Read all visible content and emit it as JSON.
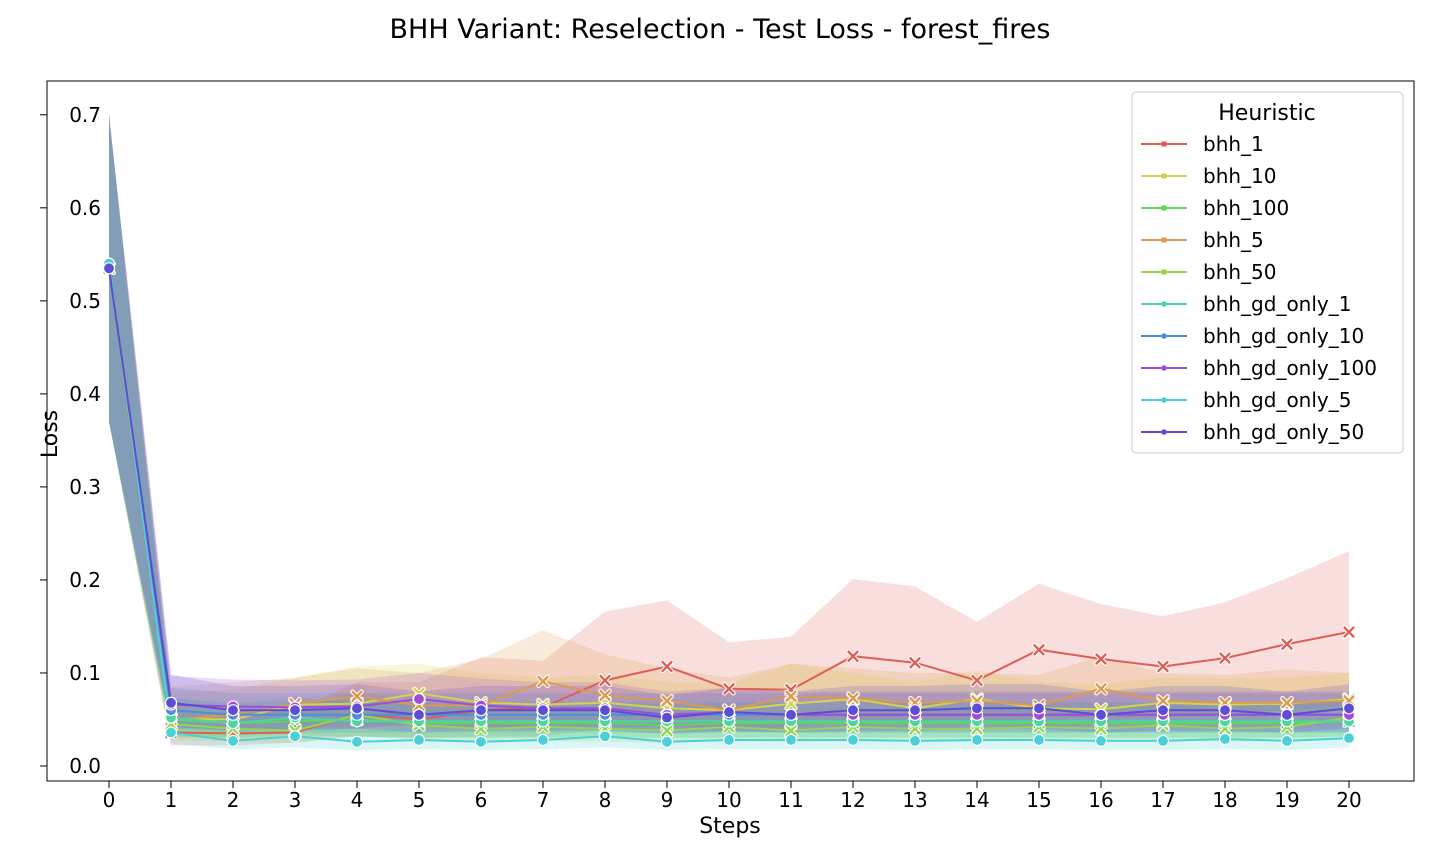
{
  "chart_data": {
    "type": "line",
    "title": "BHH Variant: Reselection - Test Loss - forest_fires",
    "xlabel": "Steps",
    "ylabel": "Loss",
    "xlim": [
      0,
      20
    ],
    "ylim": [
      -0.015,
      0.735
    ],
    "x": [
      0,
      1,
      2,
      3,
      4,
      5,
      6,
      7,
      8,
      9,
      10,
      11,
      12,
      13,
      14,
      15,
      16,
      17,
      18,
      19,
      20
    ],
    "x_ticks": [
      "0",
      "1",
      "2",
      "3",
      "4",
      "5",
      "6",
      "7",
      "8",
      "9",
      "10",
      "11",
      "12",
      "13",
      "14",
      "15",
      "16",
      "17",
      "18",
      "19",
      "20"
    ],
    "y_ticks": [
      {
        "v": 0.0,
        "label": "0.0"
      },
      {
        "v": 0.1,
        "label": "0.1"
      },
      {
        "v": 0.2,
        "label": "0.2"
      },
      {
        "v": 0.3,
        "label": "0.3"
      },
      {
        "v": 0.4,
        "label": "0.4"
      },
      {
        "v": 0.5,
        "label": "0.5"
      },
      {
        "v": 0.6,
        "label": "0.6"
      },
      {
        "v": 0.7,
        "label": "0.7"
      }
    ],
    "grid": false,
    "legend": {
      "title": "Heuristic",
      "placement": "top-right"
    },
    "series": [
      {
        "name": "bhh_1",
        "color": "#db5f57",
        "marker": "x",
        "values": [
          0.535,
          0.036,
          0.035,
          0.036,
          0.056,
          0.05,
          0.06,
          0.063,
          0.092,
          0.107,
          0.083,
          0.082,
          0.118,
          0.111,
          0.092,
          0.125,
          0.115,
          0.107,
          0.116,
          0.131,
          0.144
        ],
        "lower": [
          0.37,
          0.022,
          0.022,
          0.025,
          0.032,
          0.03,
          0.032,
          0.032,
          0.04,
          0.044,
          0.04,
          0.042,
          0.05,
          0.048,
          0.044,
          0.052,
          0.052,
          0.052,
          0.055,
          0.06,
          0.065
        ],
        "upper": [
          0.7,
          0.058,
          0.058,
          0.06,
          0.09,
          0.09,
          0.117,
          0.113,
          0.166,
          0.178,
          0.133,
          0.139,
          0.201,
          0.193,
          0.155,
          0.196,
          0.174,
          0.161,
          0.176,
          0.202,
          0.231
        ]
      },
      {
        "name": "bhh_10",
        "color": "#d3d34c",
        "marker": "x",
        "values": [
          0.535,
          0.051,
          0.05,
          0.066,
          0.067,
          0.078,
          0.068,
          0.066,
          0.068,
          0.062,
          0.06,
          0.067,
          0.072,
          0.062,
          0.072,
          0.062,
          0.061,
          0.068,
          0.066,
          0.067,
          0.072
        ],
        "lower": [
          0.37,
          0.03,
          0.03,
          0.04,
          0.04,
          0.048,
          0.042,
          0.04,
          0.042,
          0.04,
          0.038,
          0.04,
          0.044,
          0.04,
          0.044,
          0.04,
          0.04,
          0.042,
          0.042,
          0.042,
          0.045
        ],
        "upper": [
          0.7,
          0.08,
          0.082,
          0.095,
          0.107,
          0.11,
          0.1,
          0.095,
          0.098,
          0.09,
          0.088,
          0.11,
          0.1,
          0.09,
          0.103,
          0.09,
          0.088,
          0.095,
          0.094,
          0.095,
          0.1
        ]
      },
      {
        "name": "bhh_100",
        "color": "#5cd65c",
        "marker": "x",
        "values": [
          0.535,
          0.05,
          0.046,
          0.048,
          0.05,
          0.046,
          0.046,
          0.046,
          0.046,
          0.044,
          0.046,
          0.046,
          0.046,
          0.046,
          0.046,
          0.046,
          0.046,
          0.046,
          0.046,
          0.046,
          0.048
        ],
        "lower": [
          0.37,
          0.032,
          0.03,
          0.032,
          0.032,
          0.03,
          0.03,
          0.03,
          0.03,
          0.03,
          0.03,
          0.03,
          0.03,
          0.03,
          0.03,
          0.03,
          0.03,
          0.03,
          0.03,
          0.03,
          0.032
        ],
        "upper": [
          0.7,
          0.072,
          0.068,
          0.07,
          0.072,
          0.068,
          0.068,
          0.068,
          0.068,
          0.066,
          0.068,
          0.068,
          0.068,
          0.068,
          0.068,
          0.068,
          0.068,
          0.068,
          0.068,
          0.068,
          0.07
        ]
      },
      {
        "name": "bhh_5",
        "color": "#db9a4c",
        "marker": "x",
        "values": [
          0.535,
          0.05,
          0.055,
          0.067,
          0.075,
          0.065,
          0.065,
          0.091,
          0.076,
          0.07,
          0.06,
          0.075,
          0.073,
          0.068,
          0.07,
          0.065,
          0.083,
          0.07,
          0.068,
          0.068,
          0.07
        ],
        "lower": [
          0.37,
          0.03,
          0.032,
          0.04,
          0.045,
          0.04,
          0.04,
          0.045,
          0.042,
          0.042,
          0.038,
          0.042,
          0.042,
          0.04,
          0.042,
          0.04,
          0.045,
          0.042,
          0.04,
          0.04,
          0.042
        ],
        "upper": [
          0.7,
          0.085,
          0.09,
          0.095,
          0.105,
          0.1,
          0.115,
          0.146,
          0.12,
          0.105,
          0.095,
          0.11,
          0.105,
          0.1,
          0.1,
          0.098,
          0.118,
          0.1,
          0.098,
          0.104,
          0.1
        ]
      },
      {
        "name": "bhh_50",
        "color": "#96d64c",
        "marker": "x",
        "values": [
          0.535,
          0.045,
          0.04,
          0.038,
          0.055,
          0.044,
          0.04,
          0.042,
          0.04,
          0.038,
          0.042,
          0.038,
          0.042,
          0.04,
          0.04,
          0.042,
          0.04,
          0.044,
          0.04,
          0.042,
          0.052
        ],
        "lower": [
          0.37,
          0.028,
          0.026,
          0.025,
          0.032,
          0.028,
          0.026,
          0.027,
          0.026,
          0.025,
          0.027,
          0.025,
          0.027,
          0.026,
          0.026,
          0.027,
          0.026,
          0.028,
          0.026,
          0.027,
          0.032
        ],
        "upper": [
          0.7,
          0.068,
          0.062,
          0.06,
          0.082,
          0.066,
          0.062,
          0.064,
          0.062,
          0.06,
          0.064,
          0.06,
          0.064,
          0.062,
          0.062,
          0.064,
          0.062,
          0.066,
          0.062,
          0.064,
          0.076
        ]
      },
      {
        "name": "bhh_gd_only_1",
        "color": "#4cd6a0",
        "marker": "o",
        "values": [
          0.54,
          0.052,
          0.046,
          0.052,
          0.048,
          0.048,
          0.048,
          0.048,
          0.048,
          0.048,
          0.048,
          0.048,
          0.048,
          0.048,
          0.048,
          0.048,
          0.048,
          0.048,
          0.048,
          0.048,
          0.048
        ],
        "lower": [
          0.37,
          0.034,
          0.03,
          0.034,
          0.031,
          0.031,
          0.031,
          0.031,
          0.031,
          0.031,
          0.031,
          0.031,
          0.031,
          0.031,
          0.031,
          0.031,
          0.031,
          0.031,
          0.031,
          0.031,
          0.031
        ],
        "upper": [
          0.7,
          0.074,
          0.066,
          0.074,
          0.069,
          0.069,
          0.069,
          0.069,
          0.069,
          0.069,
          0.069,
          0.069,
          0.069,
          0.069,
          0.069,
          0.069,
          0.069,
          0.069,
          0.069,
          0.069,
          0.069
        ]
      },
      {
        "name": "bhh_gd_only_10",
        "color": "#4c8fd6",
        "marker": "o",
        "values": [
          0.535,
          0.06,
          0.055,
          0.055,
          0.055,
          0.055,
          0.055,
          0.055,
          0.055,
          0.055,
          0.055,
          0.055,
          0.055,
          0.055,
          0.055,
          0.055,
          0.055,
          0.055,
          0.055,
          0.055,
          0.055
        ],
        "lower": [
          0.37,
          0.04,
          0.036,
          0.036,
          0.036,
          0.036,
          0.036,
          0.036,
          0.036,
          0.036,
          0.036,
          0.036,
          0.036,
          0.036,
          0.036,
          0.036,
          0.036,
          0.036,
          0.036,
          0.036,
          0.036
        ],
        "upper": [
          0.7,
          0.084,
          0.078,
          0.078,
          0.078,
          0.078,
          0.078,
          0.078,
          0.078,
          0.078,
          0.078,
          0.078,
          0.078,
          0.078,
          0.078,
          0.078,
          0.078,
          0.078,
          0.078,
          0.078,
          0.078
        ]
      },
      {
        "name": "bhh_gd_only_100",
        "color": "#a04cd6",
        "marker": "o",
        "values": [
          0.535,
          0.066,
          0.064,
          0.063,
          0.064,
          0.072,
          0.065,
          0.062,
          0.062,
          0.055,
          0.058,
          0.055,
          0.055,
          0.055,
          0.055,
          0.055,
          0.055,
          0.055,
          0.055,
          0.055,
          0.055
        ],
        "lower": [
          0.37,
          0.04,
          0.04,
          0.04,
          0.04,
          0.045,
          0.04,
          0.04,
          0.04,
          0.036,
          0.038,
          0.036,
          0.036,
          0.036,
          0.036,
          0.036,
          0.036,
          0.036,
          0.036,
          0.036,
          0.036
        ],
        "upper": [
          0.7,
          0.097,
          0.093,
          0.092,
          0.093,
          0.1,
          0.094,
          0.09,
          0.09,
          0.08,
          0.084,
          0.08,
          0.08,
          0.08,
          0.08,
          0.08,
          0.08,
          0.08,
          0.08,
          0.08,
          0.08
        ]
      },
      {
        "name": "bhh_gd_only_5",
        "color": "#4cd0d6",
        "marker": "o",
        "values": [
          0.54,
          0.036,
          0.027,
          0.032,
          0.026,
          0.028,
          0.026,
          0.028,
          0.032,
          0.026,
          0.028,
          0.028,
          0.028,
          0.027,
          0.028,
          0.028,
          0.027,
          0.027,
          0.029,
          0.027,
          0.03
        ],
        "lower": [
          0.37,
          0.024,
          0.018,
          0.02,
          0.017,
          0.018,
          0.017,
          0.018,
          0.02,
          0.017,
          0.018,
          0.018,
          0.018,
          0.017,
          0.018,
          0.018,
          0.017,
          0.017,
          0.018,
          0.017,
          0.02
        ],
        "upper": [
          0.7,
          0.052,
          0.04,
          0.046,
          0.038,
          0.04,
          0.038,
          0.04,
          0.046,
          0.038,
          0.04,
          0.04,
          0.04,
          0.039,
          0.04,
          0.04,
          0.039,
          0.039,
          0.041,
          0.039,
          0.042
        ]
      },
      {
        "name": "bhh_gd_only_50",
        "color": "#5c4cd6",
        "marker": "o",
        "values": [
          0.535,
          0.068,
          0.06,
          0.06,
          0.062,
          0.055,
          0.06,
          0.06,
          0.06,
          0.052,
          0.058,
          0.055,
          0.06,
          0.06,
          0.062,
          0.062,
          0.055,
          0.06,
          0.06,
          0.055,
          0.062
        ],
        "lower": [
          0.37,
          0.042,
          0.038,
          0.038,
          0.04,
          0.036,
          0.038,
          0.038,
          0.038,
          0.034,
          0.037,
          0.036,
          0.038,
          0.038,
          0.04,
          0.04,
          0.036,
          0.038,
          0.038,
          0.036,
          0.04
        ],
        "upper": [
          0.7,
          0.098,
          0.086,
          0.086,
          0.088,
          0.08,
          0.086,
          0.086,
          0.086,
          0.076,
          0.084,
          0.08,
          0.086,
          0.086,
          0.088,
          0.088,
          0.08,
          0.086,
          0.086,
          0.08,
          0.088
        ]
      }
    ]
  }
}
